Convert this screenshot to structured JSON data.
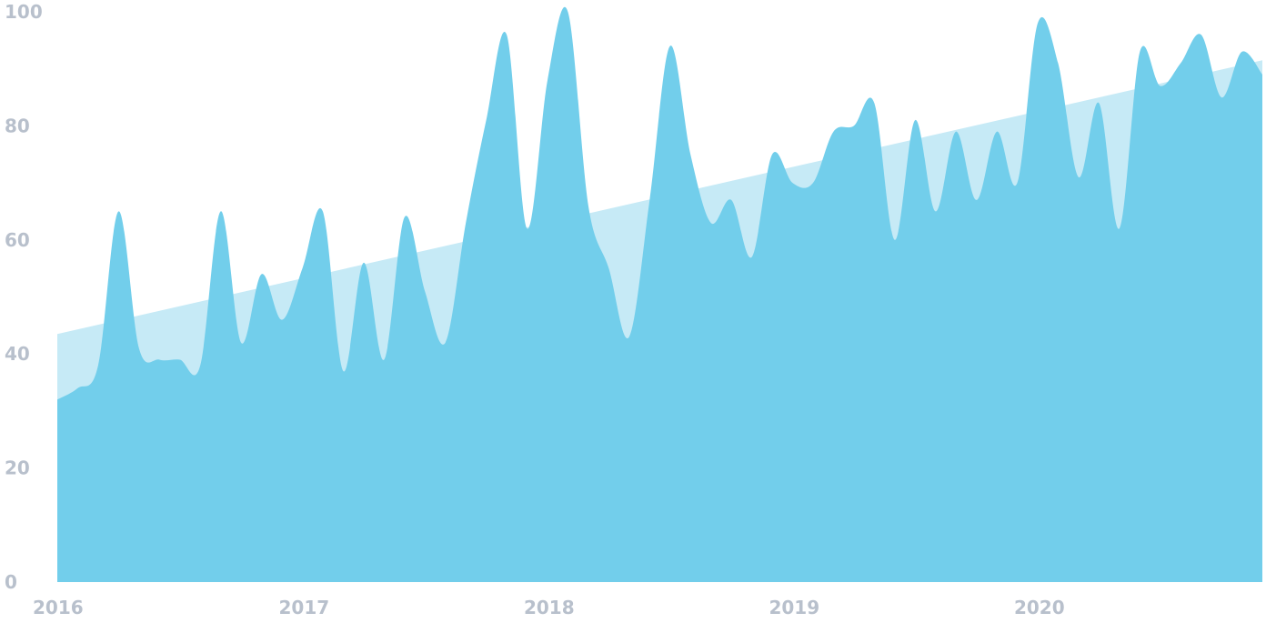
{
  "chart_data": {
    "type": "area",
    "title": "",
    "xlabel": "",
    "ylabel": "",
    "ylim": [
      0,
      100
    ],
    "xlim": [
      "2016-01",
      "2020-12"
    ],
    "grid": false,
    "legend": "none",
    "y_ticks": [
      0,
      20,
      40,
      60,
      80,
      100
    ],
    "y_tick_labels": [
      "0",
      "20",
      "40",
      "60",
      "80",
      "100"
    ],
    "x_ticks": [
      "2016-01",
      "2017-01",
      "2018-01",
      "2019-01",
      "2020-01"
    ],
    "x_tick_labels": [
      "2016",
      "2017",
      "2018",
      "2019",
      "2020"
    ],
    "series": [
      {
        "kind": "trend",
        "color": "#c6eaf6",
        "x": [
          "2016-01",
          "2020-12"
        ],
        "values": [
          43.5,
          91.5
        ]
      },
      {
        "kind": "values",
        "color": "#72ceeb",
        "x": [
          "2016-01",
          "2016-02",
          "2016-03",
          "2016-04",
          "2016-05",
          "2016-06",
          "2016-07",
          "2016-08",
          "2016-09",
          "2016-10",
          "2016-11",
          "2016-12",
          "2017-01",
          "2017-02",
          "2017-03",
          "2017-04",
          "2017-05",
          "2017-06",
          "2017-07",
          "2017-08",
          "2017-09",
          "2017-10",
          "2017-11",
          "2017-12",
          "2018-01",
          "2018-02",
          "2018-03",
          "2018-04",
          "2018-05",
          "2018-06",
          "2018-07",
          "2018-08",
          "2018-09",
          "2018-10",
          "2018-11",
          "2018-12",
          "2019-01",
          "2019-02",
          "2019-03",
          "2019-04",
          "2019-05",
          "2019-06",
          "2019-07",
          "2019-08",
          "2019-09",
          "2019-10",
          "2019-11",
          "2019-12",
          "2020-01",
          "2020-02",
          "2020-03",
          "2020-04",
          "2020-05",
          "2020-06",
          "2020-07",
          "2020-08",
          "2020-09",
          "2020-10",
          "2020-11",
          "2020-12"
        ],
        "values": [
          32,
          34,
          38,
          65,
          41,
          39,
          39,
          38,
          65,
          42,
          54,
          46,
          55,
          65,
          37,
          56,
          39,
          64,
          51,
          42,
          63,
          81,
          96,
          62,
          88,
          100,
          66,
          55,
          43,
          67,
          94,
          75,
          63,
          67,
          57,
          75,
          70,
          70,
          79,
          80,
          84,
          60,
          81,
          65,
          79,
          67,
          79,
          70,
          98,
          91,
          71,
          84,
          62,
          93,
          87,
          91,
          96,
          85,
          93,
          89
        ]
      }
    ]
  }
}
